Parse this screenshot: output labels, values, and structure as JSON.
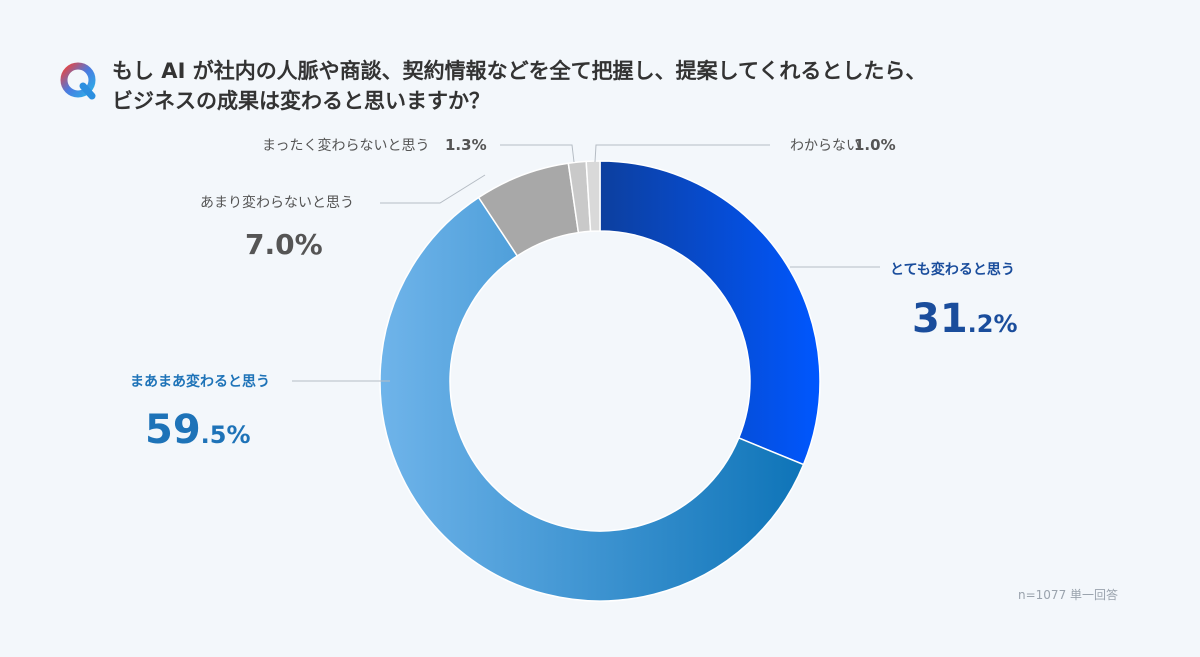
{
  "question": {
    "badge": "Q",
    "text": "もし AI が社内の人脈や商談、契約情報などを全て把握し、提案してくれるとしたら、\nビジネスの成果は変わると思いますか？"
  },
  "footnote": "n=1077 単一回答",
  "chart_data": {
    "type": "pie",
    "variant": "donut",
    "unit": "%",
    "categories": [
      "とても変わると思う",
      "まあまあ変わると思う",
      "あまり変わらないと思う",
      "まったく変わらないと思う",
      "わからない"
    ],
    "values": [
      31.2,
      59.5,
      7.0,
      1.3,
      1.0
    ],
    "labels": [
      "31.2%",
      "59.5%",
      "7.0%",
      "1.3%",
      "1.0%"
    ],
    "colors": [
      "#0a52d6",
      "#3e93d8",
      "#a8a8a8",
      "#c9c9c9",
      "#d9d9d9"
    ],
    "start_angle": "top, clockwise"
  }
}
